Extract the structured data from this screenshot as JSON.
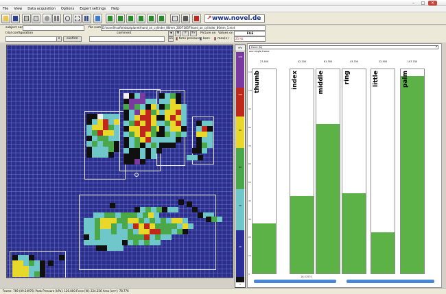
{
  "window": {
    "controls": [
      "–",
      "□",
      "✕"
    ]
  },
  "menu": [
    "File",
    "View",
    "Data acquisition",
    "Options",
    "Expert settings",
    "Help"
  ],
  "toolbar": {
    "icons": [
      "open-icon",
      "save-icon",
      "print-icon",
      "print-preview-icon",
      "record-icon",
      "pause-icon",
      "zoom-icon",
      "zoom-area-icon",
      "grid-icon",
      "sensor-view-icon",
      "first-frame-icon",
      "prev-frame-icon",
      "play-icon",
      "next-frame-icon",
      "last-frame-icon",
      "frame-icon",
      "snap-icon",
      "camera-icon",
      "stop-icon",
      "settings-icon"
    ],
    "logo": "www.novel.de"
  },
  "form": {
    "subject_name_label": "subject name",
    "trial_config_label": "trial configuration",
    "comment_label": "comment",
    "confirm_label": "confirm",
    "file_name_label": "file name",
    "file_path": "D:\\novel\\hsofte\\data\\planet\\hand_on_cylinder_80mm_20071007\\hand_on_cylinder_80mm_1.mvt",
    "nav_buttons": [
      "◄",
      "M",
      "F",
      "F»"
    ],
    "picture_on": "Picture on",
    "values_on": "Values on",
    "file_badge": "FILE",
    "freq_badge": "25 Hz",
    "toggles": [
      "time pressure",
      "bars",
      "max(n)"
    ],
    "toggle_state": "on"
  },
  "scale": {
    "unit": "kPa",
    "ticks": [
      "126",
      "100",
      "80",
      "60",
      "40",
      "20",
      "1"
    ]
  },
  "bar_panel": {
    "dropdown_value": "Force (N)",
    "subtitle": "one single frame",
    "y_ticks": [
      "110",
      "100",
      "90",
      "80",
      "70",
      "60",
      "50",
      "40",
      "30",
      "20",
      "10",
      "0"
    ],
    "midpoint_label": "16.57070"
  },
  "chart_data": {
    "type": "bar",
    "categories": [
      "thumb",
      "index",
      "middle",
      "ring",
      "little",
      "palm"
    ],
    "values": [
      27.4,
      42.2,
      81.3,
      43.7,
      22.5,
      107.7
    ],
    "value_labels": [
      "27.400",
      "42.200",
      "81.300",
      "43.700",
      "22.500",
      "107.700"
    ],
    "ylim": [
      0,
      112
    ],
    "grid": false,
    "bar_color": "#5cb247"
  },
  "status": {
    "text": "Frame: 769 (09.54976)    Peak Pressure [kPa]: 126.000    Force [N]: 224.256    Area [cm²]: 78.776"
  },
  "colors": {
    "grid_bg": "#2b2f8a",
    "scale_bands": [
      "#7a3aa0",
      "#c0281c",
      "#e8d82a",
      "#4aa84a",
      "#6fc7c9",
      "#2c2f9a",
      "#101010"
    ]
  }
}
